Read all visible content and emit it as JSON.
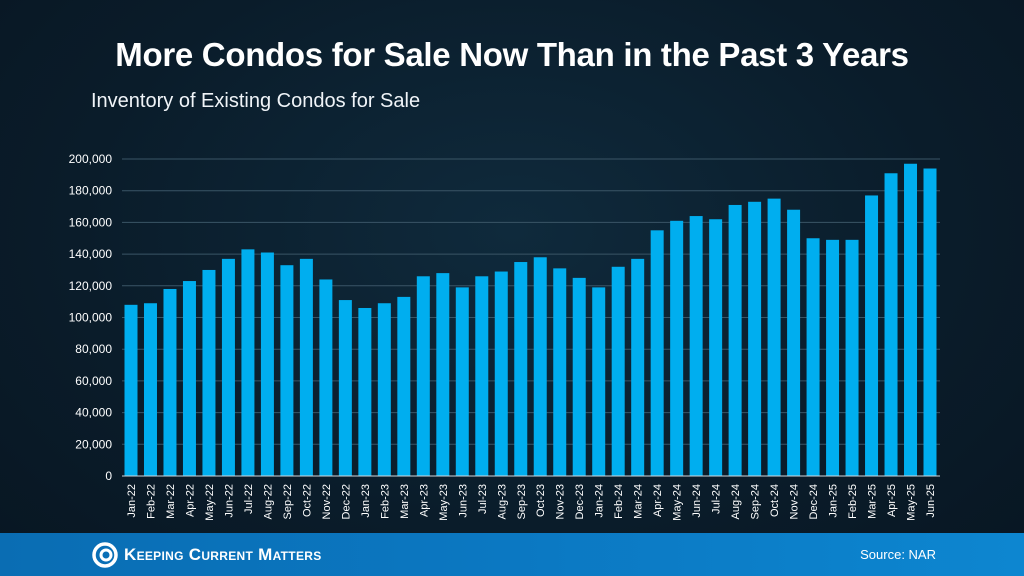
{
  "chart_data": {
    "type": "bar",
    "title": "More Condos for Sale Now Than in the Past 3 Years",
    "subtitle": "Inventory of Existing Condos for Sale",
    "xlabel": "",
    "ylabel": "",
    "ylim": [
      0,
      200000
    ],
    "yticks": [
      "0",
      "20,000",
      "40,000",
      "60,000",
      "80,000",
      "100,000",
      "120,000",
      "140,000",
      "160,000",
      "180,000",
      "200,000"
    ],
    "grid": true,
    "bar_color": "#00aeef",
    "categories": [
      "Jan-22",
      "Feb-22",
      "Mar-22",
      "Apr-22",
      "May-22",
      "Jun-22",
      "Jul-22",
      "Aug-22",
      "Sep-22",
      "Oct-22",
      "Nov-22",
      "Dec-22",
      "Jan-23",
      "Feb-23",
      "Mar-23",
      "Apr-23",
      "May-23",
      "Jun-23",
      "Jul-23",
      "Aug-23",
      "Sep-23",
      "Oct-23",
      "Nov-23",
      "Dec-23",
      "Jan-24",
      "Feb-24",
      "Mar-24",
      "Apr-24",
      "May-24",
      "Jun-24",
      "Jul-24",
      "Aug-24",
      "Sep-24",
      "Oct-24",
      "Nov-24",
      "Dec-24",
      "Jan-25",
      "Feb-25",
      "Mar-25",
      "Apr-25",
      "May-25",
      "Jun-25"
    ],
    "values": [
      108000,
      109000,
      118000,
      123000,
      130000,
      137000,
      143000,
      141000,
      133000,
      137000,
      124000,
      111000,
      106000,
      109000,
      113000,
      126000,
      128000,
      119000,
      126000,
      129000,
      135000,
      138000,
      131000,
      125000,
      119000,
      132000,
      137000,
      155000,
      161000,
      164000,
      162000,
      171000,
      173000,
      175000,
      168000,
      150000,
      149000,
      149000,
      177000,
      191000,
      197000,
      194000
    ]
  },
  "footer": {
    "brand": "Keeping Current Matters",
    "source": "Source: NAR"
  }
}
